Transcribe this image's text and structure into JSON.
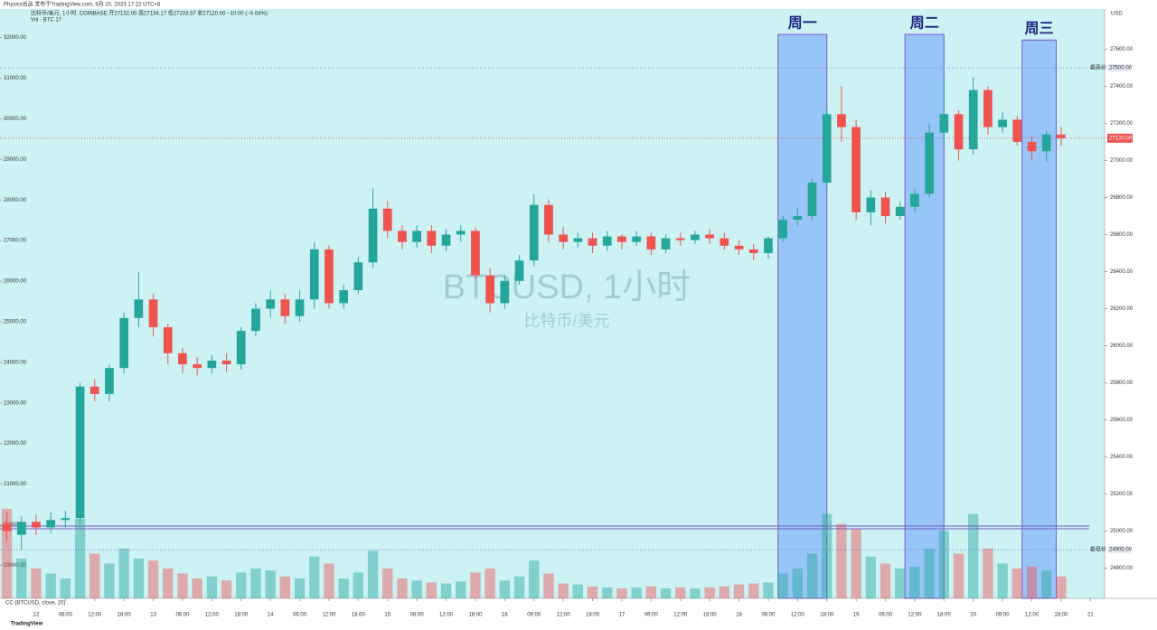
{
  "chart_data": {
    "type": "candlestick",
    "source": "Physics出品 发布于TradingView.com, 9月 20, 2023 17:22 UTC+8",
    "title": "比特币/美元, 1小时, COINBASE 开27132.00 高27134.17 低27103.57 收27120.00 −10.00 (−0.04%)",
    "volume_label": "Vol · BTC 17",
    "watermark": "BTCUSD, 1小时",
    "watermark_sub": "比特币/美元",
    "indicator": "CC (BTCUSD, close, 20)",
    "currency": "USD",
    "footer": "TradingView",
    "up_color": "#26a69a",
    "down_color": "#ef5350",
    "x": [
      -6,
      -3,
      0,
      3,
      6,
      9,
      12,
      15,
      18,
      21,
      24,
      27,
      30,
      33,
      36,
      39,
      42,
      45,
      48,
      51,
      54,
      57,
      60,
      63,
      66,
      69,
      72,
      75,
      78,
      81,
      84,
      87,
      90,
      93,
      96,
      99,
      102,
      105,
      108,
      111,
      114,
      117,
      120,
      123,
      126,
      129,
      132,
      135,
      138,
      141,
      144,
      147,
      150,
      153,
      156,
      159,
      162,
      165,
      168,
      171,
      174,
      177,
      180,
      183,
      186,
      189,
      192,
      195,
      198,
      201,
      204,
      207,
      210
    ],
    "open": [
      25040,
      24980,
      25050,
      25020,
      25060,
      25070,
      25780,
      25740,
      25880,
      26150,
      26250,
      26100,
      25960,
      25900,
      25880,
      25920,
      25900,
      26080,
      26200,
      26250,
      26160,
      26250,
      26520,
      26230,
      26300,
      26450,
      26740,
      26620,
      26560,
      26620,
      26540,
      26600,
      26620,
      26380,
      26230,
      26350,
      26460,
      26760,
      26600,
      26560,
      26580,
      26540,
      26590,
      26560,
      26590,
      26520,
      26580,
      26570,
      26600,
      26580,
      26540,
      26520,
      26500,
      26580,
      26680,
      26700,
      26880,
      27250,
      27180,
      26720,
      26800,
      26700,
      26750,
      26820,
      27150,
      27250,
      27060,
      27380,
      27180,
      27220,
      27100,
      27050,
      27140
    ],
    "high": [
      25100,
      25080,
      25090,
      25100,
      25110,
      25800,
      25820,
      25900,
      26180,
      26400,
      26280,
      26120,
      25990,
      25940,
      25950,
      25960,
      26100,
      26230,
      26300,
      26280,
      26300,
      26560,
      26540,
      26330,
      26480,
      26850,
      26780,
      26650,
      26650,
      26650,
      26630,
      26650,
      26640,
      26420,
      26380,
      26490,
      26820,
      26790,
      26640,
      26610,
      26610,
      26620,
      26600,
      26620,
      26610,
      26600,
      26610,
      26620,
      26630,
      26610,
      26570,
      26550,
      26590,
      26700,
      26740,
      26900,
      27280,
      27400,
      27220,
      26840,
      26830,
      26780,
      26850,
      27200,
      27440,
      27270,
      27450,
      27400,
      27260,
      27240,
      27130,
      27160,
      27180
    ],
    "low": [
      24950,
      24900,
      24980,
      24990,
      25020,
      25040,
      25700,
      25700,
      25850,
      26100,
      26050,
      25900,
      25850,
      25840,
      25850,
      25860,
      25870,
      26050,
      26150,
      26120,
      26130,
      26200,
      26200,
      26200,
      26280,
      26420,
      26580,
      26520,
      26530,
      26500,
      26510,
      26560,
      26360,
      26180,
      26200,
      26330,
      26430,
      26560,
      26520,
      26530,
      26500,
      26510,
      26520,
      26540,
      26490,
      26500,
      26540,
      26550,
      26550,
      26520,
      26490,
      26460,
      26470,
      26560,
      26650,
      26680,
      26860,
      27100,
      26680,
      26650,
      26660,
      26680,
      26720,
      26800,
      27100,
      27000,
      27030,
      27140,
      27150,
      27080,
      27000,
      26990,
      27080
    ],
    "close": [
      25000,
      25050,
      25020,
      25060,
      25070,
      25780,
      25740,
      25880,
      26150,
      26250,
      26100,
      25960,
      25900,
      25880,
      25920,
      25900,
      26080,
      26200,
      26250,
      26160,
      26250,
      26520,
      26230,
      26300,
      26450,
      26740,
      26620,
      26560,
      26620,
      26540,
      26600,
      26620,
      26380,
      26230,
      26350,
      26460,
      26760,
      26600,
      26560,
      26580,
      26540,
      26590,
      26560,
      26590,
      26520,
      26580,
      26570,
      26600,
      26580,
      26540,
      26520,
      26500,
      26580,
      26680,
      26700,
      26880,
      27250,
      27180,
      26720,
      26800,
      26700,
      26750,
      26820,
      27150,
      27250,
      27060,
      27380,
      27180,
      27220,
      27100,
      27050,
      27140,
      27120
    ],
    "volume": [
      900,
      400,
      300,
      250,
      200,
      800,
      450,
      350,
      500,
      400,
      380,
      300,
      250,
      200,
      220,
      180,
      260,
      300,
      280,
      220,
      200,
      420,
      350,
      200,
      260,
      480,
      300,
      200,
      180,
      160,
      150,
      170,
      260,
      300,
      180,
      220,
      380,
      250,
      150,
      140,
      120,
      110,
      100,
      110,
      120,
      100,
      110,
      100,
      110,
      120,
      140,
      150,
      160,
      250,
      300,
      450,
      850,
      750,
      700,
      420,
      350,
      300,
      320,
      500,
      680,
      450,
      850,
      500,
      350,
      300,
      320,
      280,
      220
    ],
    "vlim": [
      0,
      1000
    ],
    "xlim": [
      -7.4,
      218.9
    ],
    "xticks": [
      {
        "value": 0,
        "label": "12"
      },
      {
        "value": 6,
        "label": "06:00"
      },
      {
        "value": 12,
        "label": "12:00"
      },
      {
        "value": 18,
        "label": "18:00"
      },
      {
        "value": 24,
        "label": "13"
      },
      {
        "value": 30,
        "label": "06:00"
      },
      {
        "value": 36,
        "label": "12:00"
      },
      {
        "value": 42,
        "label": "18:00"
      },
      {
        "value": 48,
        "label": "14"
      },
      {
        "value": 54,
        "label": "06:00"
      },
      {
        "value": 60,
        "label": "12:00"
      },
      {
        "value": 66,
        "label": "18:00"
      },
      {
        "value": 72,
        "label": "15"
      },
      {
        "value": 78,
        "label": "06:00"
      },
      {
        "value": 84,
        "label": "12:00"
      },
      {
        "value": 90,
        "label": "18:00"
      },
      {
        "value": 96,
        "label": "16"
      },
      {
        "value": 102,
        "label": "06:00"
      },
      {
        "value": 108,
        "label": "12:00"
      },
      {
        "value": 114,
        "label": "18:00"
      },
      {
        "value": 120,
        "label": "17"
      },
      {
        "value": 126,
        "label": "06:00"
      },
      {
        "value": 132,
        "label": "12:00"
      },
      {
        "value": 138,
        "label": "18:00"
      },
      {
        "value": 144,
        "label": "18"
      },
      {
        "value": 150,
        "label": "06:00"
      },
      {
        "value": 156,
        "label": "12:00"
      },
      {
        "value": 162,
        "label": "18:00"
      },
      {
        "value": 168,
        "label": "19"
      },
      {
        "value": 174,
        "label": "06:00"
      },
      {
        "value": 180,
        "label": "12:00"
      },
      {
        "value": 186,
        "label": "18:00"
      },
      {
        "value": 192,
        "label": "20"
      },
      {
        "value": 198,
        "label": "06:00"
      },
      {
        "value": 204,
        "label": "12:00"
      },
      {
        "value": 210,
        "label": "18:00"
      },
      {
        "value": 216,
        "label": "21"
      }
    ],
    "ylim": [
      24637,
      27817
    ],
    "yticks": [
      {
        "value": 24800,
        "label": "24800.00"
      },
      {
        "value": 25000,
        "label": "25000.00"
      },
      {
        "value": 25200,
        "label": "25200.00"
      },
      {
        "value": 25400,
        "label": "25400.00"
      },
      {
        "value": 25600,
        "label": "25600.00"
      },
      {
        "value": 25800,
        "label": "25800.00"
      },
      {
        "value": 26000,
        "label": "26000.00"
      },
      {
        "value": 26200,
        "label": "26200.00"
      },
      {
        "value": 26400,
        "label": "26400.00"
      },
      {
        "value": 26600,
        "label": "26600.00"
      },
      {
        "value": 26800,
        "label": "26800.00"
      },
      {
        "value": 27000,
        "label": "27000.00"
      },
      {
        "value": 27200,
        "label": "27200.00"
      },
      {
        "value": 27400,
        "label": "27400.00"
      },
      {
        "value": 27600,
        "label": "27600.00"
      }
    ],
    "y2lim": [
      18183,
      32705
    ],
    "y2ticks": [
      {
        "value": 19000,
        "label": "19000.00"
      },
      {
        "value": 20000,
        "label": "20000.00"
      },
      {
        "value": 21000,
        "label": "21000.00"
      },
      {
        "value": 22000,
        "label": "22000.00"
      },
      {
        "value": 23000,
        "label": "23000.00"
      },
      {
        "value": 24000,
        "label": "24000.00"
      },
      {
        "value": 25000,
        "label": "25000.00"
      },
      {
        "value": 26000,
        "label": "26000.00"
      },
      {
        "value": 27000,
        "label": "27000.00"
      },
      {
        "value": 28000,
        "label": "28000.00"
      },
      {
        "value": 29000,
        "label": "29000.00"
      },
      {
        "value": 30000,
        "label": "30000.00"
      },
      {
        "value": 31000,
        "label": "31000.00"
      },
      {
        "value": 32000,
        "label": "32000.00"
      }
    ],
    "levels": [
      {
        "label": "最高价",
        "value": 27500,
        "value_label": "27500.00",
        "color": "#7986cb"
      },
      {
        "label": "最低价",
        "value": 24900,
        "value_label": "24900.00",
        "color": "#7986cb"
      }
    ],
    "last_price": {
      "value": 27120,
      "label": "27120.00",
      "color": "#ef5350"
    },
    "band_line": 25020,
    "highlights": [
      {
        "label": "周一",
        "x": [
          152,
          162
        ],
        "top": 27680
      },
      {
        "label": "周二",
        "x": [
          178,
          186
        ],
        "top": 27680
      },
      {
        "label": "周三",
        "x": [
          202,
          209
        ],
        "top": 27650
      }
    ]
  }
}
